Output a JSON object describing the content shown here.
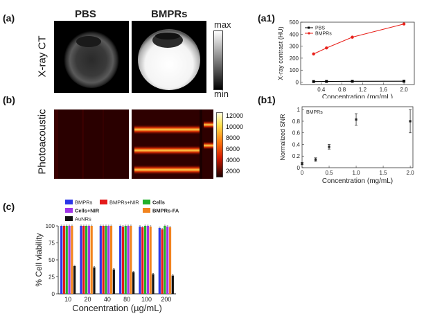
{
  "panels": {
    "a": "(a)",
    "a1": "(a1)",
    "b": "(b)",
    "b1": "(b1)",
    "c": "(c)"
  },
  "ct": {
    "col_pbs": "PBS",
    "col_bmprs": "BMPRs",
    "row_label": "X-ray CT",
    "cbar_max": "max",
    "cbar_min": "min"
  },
  "pa": {
    "row_label": "Photoacoustic",
    "cbar_ticks": [
      "12000",
      "10000",
      "8000",
      "6000",
      "4000",
      "2000"
    ]
  },
  "chart_data": [
    {
      "id": "a1",
      "type": "line",
      "xlabel": "Concentration (mg/mL)",
      "ylabel": "X-ray contrast (HU)",
      "xlim": [
        0,
        2.2
      ],
      "ylim": [
        -20,
        500
      ],
      "xticks": [
        "0.4",
        "0.8",
        "1.2",
        "1.6",
        "2.0"
      ],
      "yticks": [
        "0",
        "100",
        "200",
        "300",
        "400",
        "500"
      ],
      "legend": "top-left",
      "series": [
        {
          "name": "PBS",
          "color": "#000000",
          "x": [
            0.25,
            0.5,
            1.0,
            2.0
          ],
          "y": [
            5,
            6,
            7,
            8
          ]
        },
        {
          "name": "BMPRs",
          "color": "#e8201a",
          "x": [
            0.25,
            0.5,
            1.0,
            2.0
          ],
          "y": [
            235,
            285,
            375,
            485
          ],
          "err": [
            8,
            10,
            10,
            12
          ]
        }
      ]
    },
    {
      "id": "b1",
      "type": "scatter",
      "xlabel": "Concentration (mg/mL)",
      "ylabel": "Normalized SNR",
      "annotation": "BMPRs",
      "xlim": [
        0,
        2.05
      ],
      "ylim": [
        0,
        1.05
      ],
      "xticks": [
        "0",
        "0.5",
        "1.0",
        "1.5",
        "2.0"
      ],
      "yticks": [
        "0",
        "0.2",
        "0.4",
        "0.6",
        "0.8",
        "1"
      ],
      "x": [
        0,
        0.25,
        0.5,
        1.0,
        2.0
      ],
      "y": [
        0.07,
        0.14,
        0.36,
        0.83,
        0.8
      ],
      "err": [
        0.02,
        0.03,
        0.04,
        0.1,
        0.2
      ]
    },
    {
      "id": "c",
      "type": "bar",
      "xlabel": "Concentration (µg/mL)",
      "ylabel": "% Cell viability",
      "ylim": [
        0,
        100
      ],
      "yticks": [
        "0",
        "25",
        "50",
        "75",
        "100"
      ],
      "categories": [
        "10",
        "20",
        "40",
        "80",
        "100",
        "200"
      ],
      "legend": "top",
      "series": [
        {
          "name": "BMPRs",
          "color": "#2a36e8",
          "values": [
            100,
            100,
            100,
            100,
            99,
            97
          ]
        },
        {
          "name": "BMPRs+NIR",
          "color": "#e41a1a",
          "values": [
            100,
            100,
            100,
            99,
            98,
            95
          ]
        },
        {
          "name": "Cells",
          "color": "#22b02a",
          "values": [
            100,
            100,
            100,
            100,
            100,
            100
          ]
        },
        {
          "name": "Cells+NIR",
          "color": "#a034e8",
          "values": [
            100,
            100,
            100,
            100,
            100,
            99
          ]
        },
        {
          "name": "BMPRs-FA",
          "color": "#f2841e",
          "values": [
            100,
            100,
            100,
            100,
            99,
            98
          ]
        },
        {
          "name": "AuNRs",
          "color": "#111111",
          "values": [
            41,
            39,
            36,
            32,
            29,
            27
          ]
        }
      ]
    }
  ]
}
